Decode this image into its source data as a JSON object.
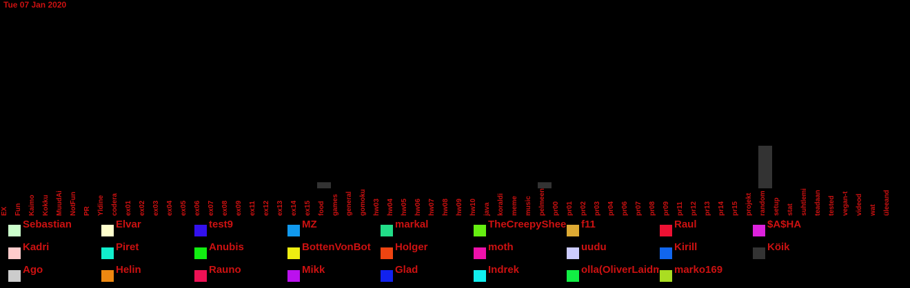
{
  "chart_data": {
    "type": "bar",
    "title": "Tue 07 Jan 2020",
    "xlabel": "",
    "ylabel": "",
    "grid": false,
    "legend_placement": "bottom",
    "categories": [
      "EX",
      "Fun",
      "Kaimo",
      "Kokku",
      "MuudAi",
      "NotFun",
      "PR",
      "Yldine",
      "codera",
      "ex01",
      "ex02",
      "ex03",
      "ex04",
      "ex05",
      "ex06",
      "ex07",
      "ex08",
      "ex09",
      "ex11",
      "ex12",
      "ex13",
      "ex14",
      "ex15",
      "food",
      "games",
      "general",
      "gomoku",
      "hw03",
      "hw04",
      "hw05",
      "hw06",
      "hw07",
      "hw08",
      "hw09",
      "hw10",
      "java",
      "koraldi",
      "meme",
      "music",
      "pelmeen",
      "pr00",
      "pr01",
      "pr02",
      "pr03",
      "pr04",
      "pr06",
      "pr07",
      "pr08",
      "pr09",
      "pr11",
      "pr12",
      "pr13",
      "pr14",
      "pr15",
      "projekt",
      "random",
      "setup",
      "stat",
      "suhtlemi",
      "teadaan",
      "tested",
      "vegan-t",
      "videod",
      "wat",
      "üleeand"
    ],
    "series": [
      {
        "name": "Köik",
        "color": "#333333",
        "values": [
          0,
          0,
          0,
          0,
          0,
          0,
          0,
          0,
          0,
          0,
          0,
          0,
          0,
          0,
          0,
          0,
          0,
          0,
          0,
          0,
          0,
          0,
          0,
          1,
          0,
          0,
          0,
          0,
          0,
          0,
          0,
          0,
          0,
          0,
          0,
          0,
          0,
          0,
          0,
          1,
          0,
          0,
          0,
          0,
          0,
          0,
          0,
          0,
          0,
          0,
          0,
          0,
          0,
          0,
          0,
          7,
          0,
          0,
          0,
          0,
          0,
          0,
          0,
          0,
          0
        ]
      }
    ],
    "ylim": [
      0,
      7
    ],
    "legend": [
      {
        "name": "Sebastian",
        "color": "#ccffcc"
      },
      {
        "name": "Elvar",
        "color": "#ffffcc"
      },
      {
        "name": "test9",
        "color": "#3311ee"
      },
      {
        "name": "MZ",
        "color": "#1199ee"
      },
      {
        "name": "markal",
        "color": "#22dd88"
      },
      {
        "name": "TheCreepySheep",
        "color": "#66ee11"
      },
      {
        "name": "f11",
        "color": "#ddaa33"
      },
      {
        "name": "Raul",
        "color": "#ee1133"
      },
      {
        "name": "$A$HA",
        "color": "#dd22dd"
      },
      {
        "name": "Kadri",
        "color": "#ffcccc"
      },
      {
        "name": "Piret",
        "color": "#11eecc"
      },
      {
        "name": "Anubis",
        "color": "#11ee11"
      },
      {
        "name": "BottenVonBot",
        "color": "#eeee11"
      },
      {
        "name": "Holger",
        "color": "#ee4411"
      },
      {
        "name": "moth",
        "color": "#ee11aa"
      },
      {
        "name": "uudu",
        "color": "#ccccff"
      },
      {
        "name": "Kirill",
        "color": "#1166ee"
      },
      {
        "name": "Köik",
        "color": "#333333"
      },
      {
        "name": "Ago",
        "color": "#cccccc"
      },
      {
        "name": "Helin",
        "color": "#ee8811"
      },
      {
        "name": "Rauno",
        "color": "#ee1155"
      },
      {
        "name": "Mikk",
        "color": "#bb11ee"
      },
      {
        "name": "Glad",
        "color": "#1122ee"
      },
      {
        "name": "Indrek",
        "color": "#11eeee"
      },
      {
        "name": "olla(OliverLaidma)",
        "color": "#11ee44"
      },
      {
        "name": "marko169",
        "color": "#aadd22"
      }
    ]
  }
}
